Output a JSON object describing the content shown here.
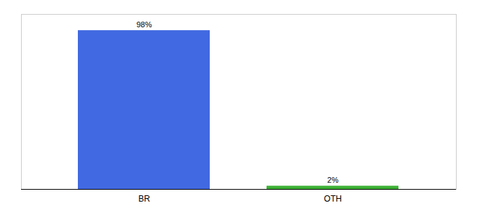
{
  "chart_data": {
    "type": "bar",
    "categories": [
      "BR",
      "OTH"
    ],
    "values": [
      98,
      2
    ],
    "value_labels": [
      "98%",
      "2%"
    ],
    "colors": [
      "#4169e1",
      "#3cb034"
    ],
    "ylim": [
      0,
      108
    ],
    "data_labels": true,
    "tick_labels": "x"
  }
}
